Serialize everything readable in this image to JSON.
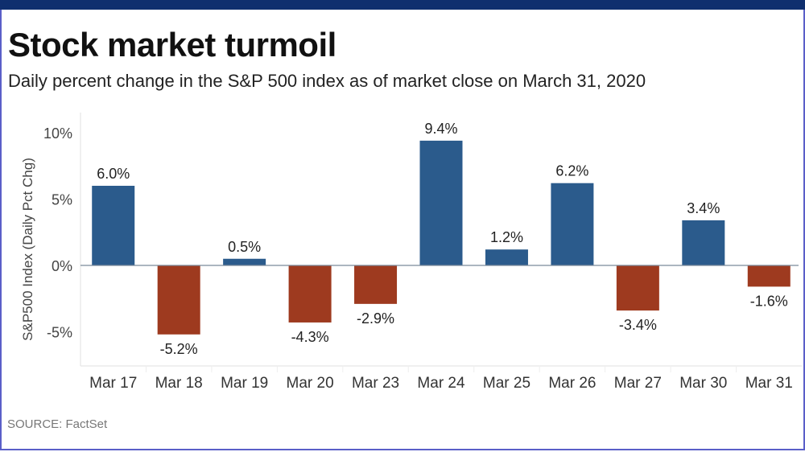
{
  "header": {
    "title": "Stock market turmoil",
    "subtitle": "Daily percent change in the S&P 500 index as of market close on March 31, 2020"
  },
  "footer": {
    "source": "SOURCE: FactSet"
  },
  "colors": {
    "positive": "#2b5b8c",
    "negative": "#9e3a1f",
    "frame": "#5a5fc8",
    "topbar": "#0f2f6e"
  },
  "chart_data": {
    "type": "bar",
    "title": "Stock market turmoil",
    "subtitle": "Daily percent change in the S&P 500 index as of market close on March 31, 2020",
    "xlabel": "",
    "ylabel": "S&P500 Index (Daily Pct Chg)",
    "ylim": [
      -7.5,
      11
    ],
    "yticks": [
      10,
      5,
      0,
      -5
    ],
    "ytick_labels": [
      "10%",
      "5%",
      "0%",
      "-5%"
    ],
    "categories": [
      "Mar 17",
      "Mar 18",
      "Mar 19",
      "Mar 20",
      "Mar 23",
      "Mar 24",
      "Mar 25",
      "Mar 26",
      "Mar 27",
      "Mar 30",
      "Mar 31"
    ],
    "values": [
      6.0,
      -5.2,
      0.5,
      -4.3,
      -2.9,
      9.4,
      1.2,
      6.2,
      -3.4,
      3.4,
      -1.6
    ],
    "value_labels": [
      "6.0%",
      "-5.2%",
      "0.5%",
      "-4.3%",
      "-2.9%",
      "9.4%",
      "1.2%",
      "6.2%",
      "-3.4%",
      "3.4%",
      "-1.6%"
    ],
    "grid": false,
    "legend": "none",
    "source": "SOURCE: FactSet"
  }
}
